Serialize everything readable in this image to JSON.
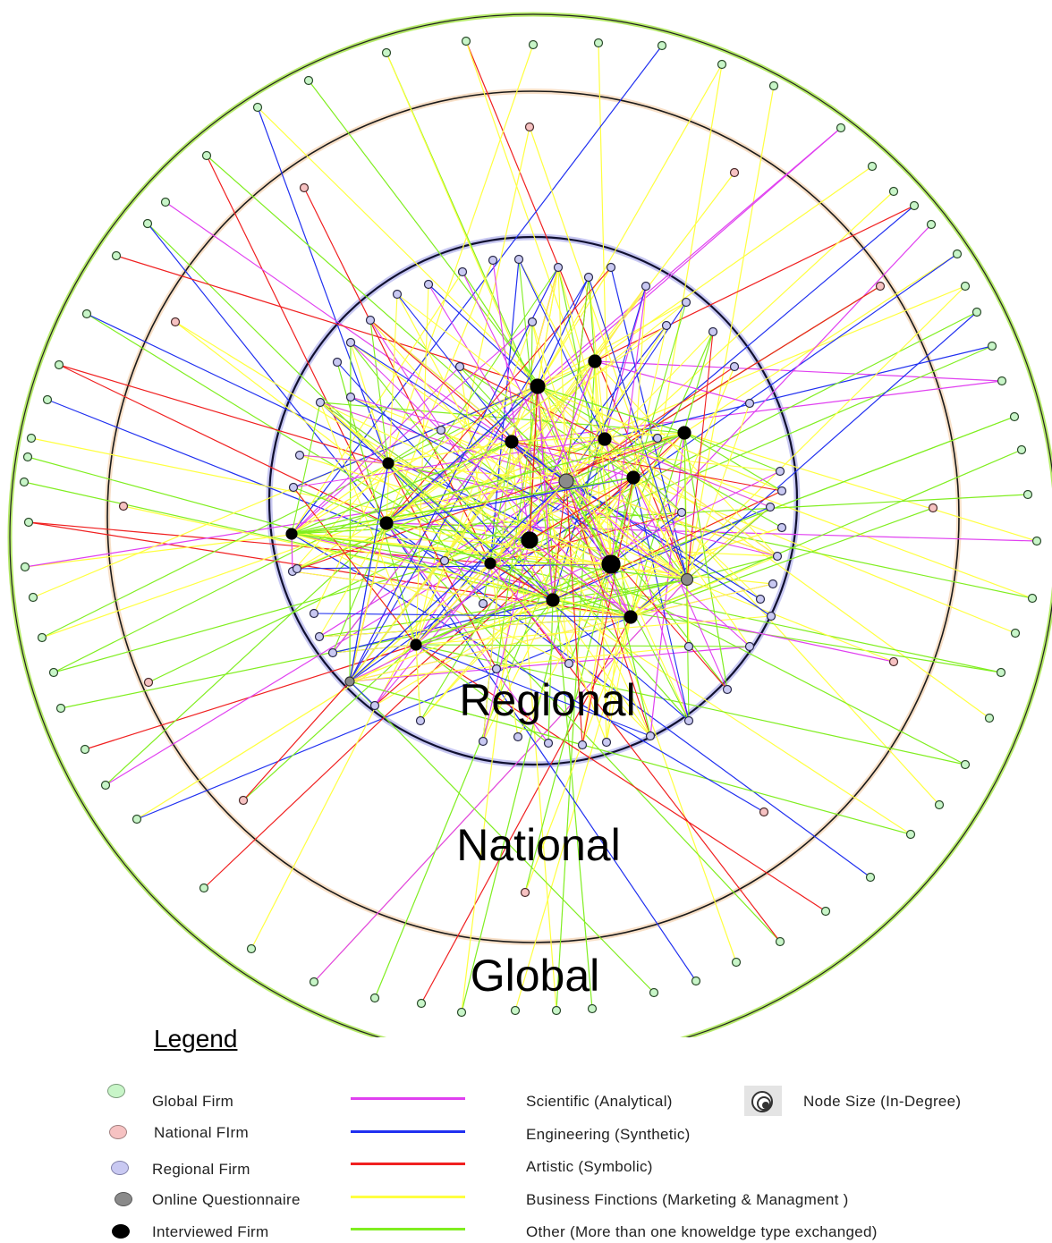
{
  "rings": {
    "regional": "Regional",
    "national": "National",
    "global": "Global"
  },
  "legend": {
    "title": "Legend",
    "nodes": [
      {
        "label": "Global Firm",
        "color": "#c8f5c8",
        "border": "#7a9a7a"
      },
      {
        "label": "National FIrm",
        "color": "#f6c2c2",
        "border": "#a08080"
      },
      {
        "label": "Regional Firm",
        "color": "#c9c9f2",
        "border": "#8080a8"
      },
      {
        "label": "Online Questionnaire",
        "color": "#8a8a8a",
        "border": "#555555"
      },
      {
        "label": "Interviewed Firm",
        "color": "#000000",
        "border": "#000000"
      }
    ],
    "ties": [
      {
        "label": "Scientific (Analytical)",
        "color": "#e040f0"
      },
      {
        "label": "Engineering (Synthetic)",
        "color": "#2030f0"
      },
      {
        "label": "Artistic (Symbolic)",
        "color": "#f02020"
      },
      {
        "label": "Business Finctions (Marketing & Managment )",
        "color": "#ffff40"
      },
      {
        "label": "Other (More than one knoweldge type exchanged)",
        "color": "#80ee20"
      }
    ],
    "size": {
      "label": "Node Size (In-Degree)",
      "icon": "node-size-icon"
    }
  }
}
